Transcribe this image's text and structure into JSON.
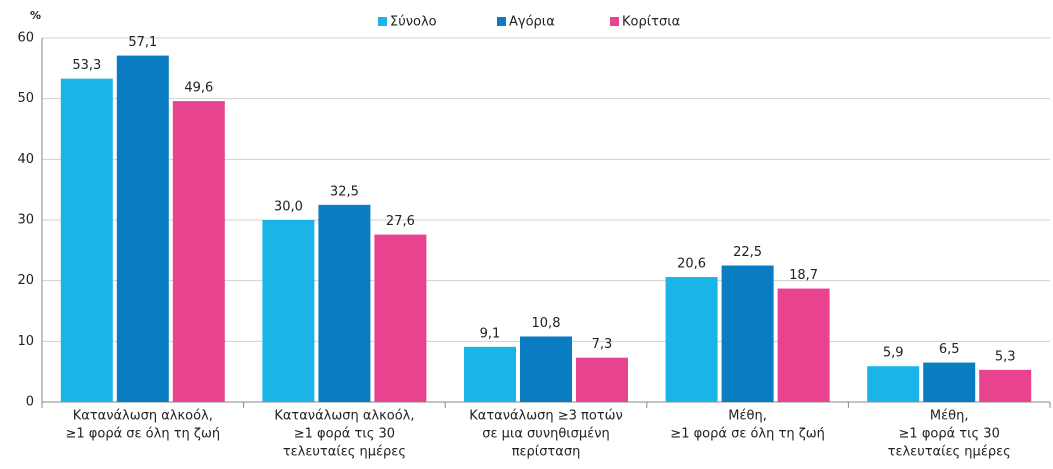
{
  "chart_data": {
    "type": "bar",
    "y_unit": "%",
    "categories": [
      [
        "Κατανάλωση αλκοόλ,",
        "≥1 φορά σε όλη τη ζωή"
      ],
      [
        "Κατανάλωση αλκοόλ,",
        "≥1 φορά τις 30",
        "τελευταίες ημέρες"
      ],
      [
        "Κατανάλωση ≥3 ποτών",
        "σε μια συνηθισμένη",
        "περίσταση"
      ],
      [
        "Μέθη,",
        "≥1 φορά σε όλη τη ζωή"
      ],
      [
        "Μέθη,",
        "≥1 φορά τις 30",
        "τελευταίες ημέρες"
      ]
    ],
    "series": [
      {
        "name": "Σύνολο",
        "color": "#1ab4e8",
        "values": [
          53.3,
          30.0,
          9.1,
          20.6,
          5.9
        ],
        "value_labels": [
          "53,3",
          "30,0",
          "9,1",
          "20,6",
          "5,9"
        ]
      },
      {
        "name": "Αγόρια",
        "color": "#0a7cc1",
        "values": [
          57.1,
          32.5,
          10.8,
          22.5,
          6.5
        ],
        "value_labels": [
          "57,1",
          "32,5",
          "10,8",
          "22,5",
          "6,5"
        ]
      },
      {
        "name": "Κορίτσια",
        "color": "#e8438f",
        "values": [
          49.6,
          27.6,
          7.3,
          18.7,
          5.3
        ],
        "value_labels": [
          "49,6",
          "27,6",
          "7,3",
          "18,7",
          "5,3"
        ]
      }
    ],
    "ylim": [
      0,
      60
    ],
    "yticks": [
      0,
      10,
      20,
      30,
      40,
      50,
      60
    ],
    "grid": true,
    "legend": "top"
  }
}
